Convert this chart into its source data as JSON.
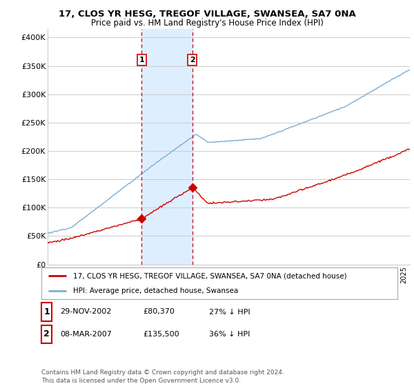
{
  "title": "17, CLOS YR HESG, TREGOF VILLAGE, SWANSEA, SA7 0NA",
  "subtitle": "Price paid vs. HM Land Registry's House Price Index (HPI)",
  "ylabel_ticks": [
    "£0",
    "£50K",
    "£100K",
    "£150K",
    "£200K",
    "£250K",
    "£300K",
    "£350K",
    "£400K"
  ],
  "ytick_values": [
    0,
    50000,
    100000,
    150000,
    200000,
    250000,
    300000,
    350000,
    400000
  ],
  "ylim": [
    0,
    415000
  ],
  "xlim_start": 1995.0,
  "xlim_end": 2025.5,
  "hpi_color": "#7aadd4",
  "price_color": "#cc0000",
  "sale1_date": 2002.91,
  "sale1_price": 80370,
  "sale2_date": 2007.18,
  "sale2_price": 135500,
  "vline_color": "#cc0000",
  "shade_color": "#ddeeff",
  "legend_label1": "17, CLOS YR HESG, TREGOF VILLAGE, SWANSEA, SA7 0NA (detached house)",
  "legend_label2": "HPI: Average price, detached house, Swansea",
  "table_row1": [
    "1",
    "29-NOV-2002",
    "£80,370",
    "27% ↓ HPI"
  ],
  "table_row2": [
    "2",
    "08-MAR-2007",
    "£135,500",
    "36% ↓ HPI"
  ],
  "footnote": "Contains HM Land Registry data © Crown copyright and database right 2024.\nThis data is licensed under the Open Government Licence v3.0.",
  "background_color": "#ffffff",
  "plot_bg_color": "#ffffff",
  "grid_color": "#cccccc"
}
